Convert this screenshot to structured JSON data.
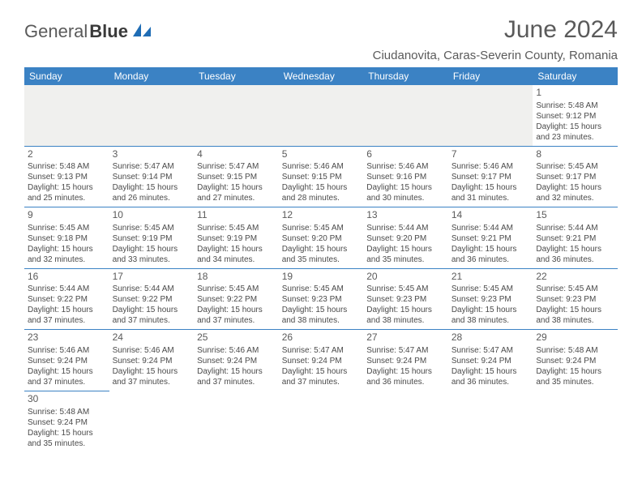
{
  "logo": {
    "part1": "General",
    "part2": "Blue"
  },
  "title": "June 2024",
  "location": "Ciudanovita, Caras-Severin County, Romania",
  "header_color": "#3b82c4",
  "weekdays": [
    "Sunday",
    "Monday",
    "Tuesday",
    "Wednesday",
    "Thursday",
    "Friday",
    "Saturday"
  ],
  "weeks": [
    [
      null,
      null,
      null,
      null,
      null,
      null,
      {
        "n": "1",
        "sr": "Sunrise: 5:48 AM",
        "ss": "Sunset: 9:12 PM",
        "d1": "Daylight: 15 hours",
        "d2": "and 23 minutes."
      }
    ],
    [
      {
        "n": "2",
        "sr": "Sunrise: 5:48 AM",
        "ss": "Sunset: 9:13 PM",
        "d1": "Daylight: 15 hours",
        "d2": "and 25 minutes."
      },
      {
        "n": "3",
        "sr": "Sunrise: 5:47 AM",
        "ss": "Sunset: 9:14 PM",
        "d1": "Daylight: 15 hours",
        "d2": "and 26 minutes."
      },
      {
        "n": "4",
        "sr": "Sunrise: 5:47 AM",
        "ss": "Sunset: 9:15 PM",
        "d1": "Daylight: 15 hours",
        "d2": "and 27 minutes."
      },
      {
        "n": "5",
        "sr": "Sunrise: 5:46 AM",
        "ss": "Sunset: 9:15 PM",
        "d1": "Daylight: 15 hours",
        "d2": "and 28 minutes."
      },
      {
        "n": "6",
        "sr": "Sunrise: 5:46 AM",
        "ss": "Sunset: 9:16 PM",
        "d1": "Daylight: 15 hours",
        "d2": "and 30 minutes."
      },
      {
        "n": "7",
        "sr": "Sunrise: 5:46 AM",
        "ss": "Sunset: 9:17 PM",
        "d1": "Daylight: 15 hours",
        "d2": "and 31 minutes."
      },
      {
        "n": "8",
        "sr": "Sunrise: 5:45 AM",
        "ss": "Sunset: 9:17 PM",
        "d1": "Daylight: 15 hours",
        "d2": "and 32 minutes."
      }
    ],
    [
      {
        "n": "9",
        "sr": "Sunrise: 5:45 AM",
        "ss": "Sunset: 9:18 PM",
        "d1": "Daylight: 15 hours",
        "d2": "and 32 minutes."
      },
      {
        "n": "10",
        "sr": "Sunrise: 5:45 AM",
        "ss": "Sunset: 9:19 PM",
        "d1": "Daylight: 15 hours",
        "d2": "and 33 minutes."
      },
      {
        "n": "11",
        "sr": "Sunrise: 5:45 AM",
        "ss": "Sunset: 9:19 PM",
        "d1": "Daylight: 15 hours",
        "d2": "and 34 minutes."
      },
      {
        "n": "12",
        "sr": "Sunrise: 5:45 AM",
        "ss": "Sunset: 9:20 PM",
        "d1": "Daylight: 15 hours",
        "d2": "and 35 minutes."
      },
      {
        "n": "13",
        "sr": "Sunrise: 5:44 AM",
        "ss": "Sunset: 9:20 PM",
        "d1": "Daylight: 15 hours",
        "d2": "and 35 minutes."
      },
      {
        "n": "14",
        "sr": "Sunrise: 5:44 AM",
        "ss": "Sunset: 9:21 PM",
        "d1": "Daylight: 15 hours",
        "d2": "and 36 minutes."
      },
      {
        "n": "15",
        "sr": "Sunrise: 5:44 AM",
        "ss": "Sunset: 9:21 PM",
        "d1": "Daylight: 15 hours",
        "d2": "and 36 minutes."
      }
    ],
    [
      {
        "n": "16",
        "sr": "Sunrise: 5:44 AM",
        "ss": "Sunset: 9:22 PM",
        "d1": "Daylight: 15 hours",
        "d2": "and 37 minutes."
      },
      {
        "n": "17",
        "sr": "Sunrise: 5:44 AM",
        "ss": "Sunset: 9:22 PM",
        "d1": "Daylight: 15 hours",
        "d2": "and 37 minutes."
      },
      {
        "n": "18",
        "sr": "Sunrise: 5:45 AM",
        "ss": "Sunset: 9:22 PM",
        "d1": "Daylight: 15 hours",
        "d2": "and 37 minutes."
      },
      {
        "n": "19",
        "sr": "Sunrise: 5:45 AM",
        "ss": "Sunset: 9:23 PM",
        "d1": "Daylight: 15 hours",
        "d2": "and 38 minutes."
      },
      {
        "n": "20",
        "sr": "Sunrise: 5:45 AM",
        "ss": "Sunset: 9:23 PM",
        "d1": "Daylight: 15 hours",
        "d2": "and 38 minutes."
      },
      {
        "n": "21",
        "sr": "Sunrise: 5:45 AM",
        "ss": "Sunset: 9:23 PM",
        "d1": "Daylight: 15 hours",
        "d2": "and 38 minutes."
      },
      {
        "n": "22",
        "sr": "Sunrise: 5:45 AM",
        "ss": "Sunset: 9:23 PM",
        "d1": "Daylight: 15 hours",
        "d2": "and 38 minutes."
      }
    ],
    [
      {
        "n": "23",
        "sr": "Sunrise: 5:46 AM",
        "ss": "Sunset: 9:24 PM",
        "d1": "Daylight: 15 hours",
        "d2": "and 37 minutes."
      },
      {
        "n": "24",
        "sr": "Sunrise: 5:46 AM",
        "ss": "Sunset: 9:24 PM",
        "d1": "Daylight: 15 hours",
        "d2": "and 37 minutes."
      },
      {
        "n": "25",
        "sr": "Sunrise: 5:46 AM",
        "ss": "Sunset: 9:24 PM",
        "d1": "Daylight: 15 hours",
        "d2": "and 37 minutes."
      },
      {
        "n": "26",
        "sr": "Sunrise: 5:47 AM",
        "ss": "Sunset: 9:24 PM",
        "d1": "Daylight: 15 hours",
        "d2": "and 37 minutes."
      },
      {
        "n": "27",
        "sr": "Sunrise: 5:47 AM",
        "ss": "Sunset: 9:24 PM",
        "d1": "Daylight: 15 hours",
        "d2": "and 36 minutes."
      },
      {
        "n": "28",
        "sr": "Sunrise: 5:47 AM",
        "ss": "Sunset: 9:24 PM",
        "d1": "Daylight: 15 hours",
        "d2": "and 36 minutes."
      },
      {
        "n": "29",
        "sr": "Sunrise: 5:48 AM",
        "ss": "Sunset: 9:24 PM",
        "d1": "Daylight: 15 hours",
        "d2": "and 35 minutes."
      }
    ],
    [
      {
        "n": "30",
        "sr": "Sunrise: 5:48 AM",
        "ss": "Sunset: 9:24 PM",
        "d1": "Daylight: 15 hours",
        "d2": "and 35 minutes."
      },
      null,
      null,
      null,
      null,
      null,
      null
    ]
  ]
}
